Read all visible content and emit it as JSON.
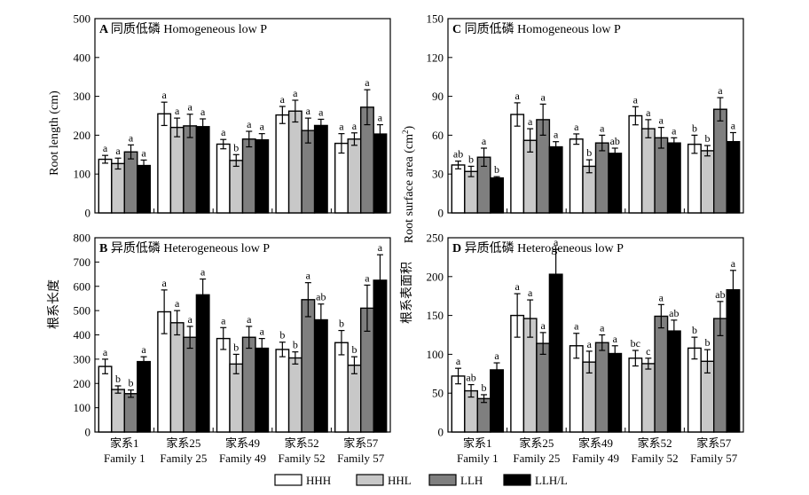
{
  "legend": [
    {
      "name": "HHH",
      "color": "#ffffff"
    },
    {
      "name": "HHL",
      "color": "#c8c8c8"
    },
    {
      "name": "LLH",
      "color": "#7f7f7f"
    },
    {
      "name": "LLH/L",
      "color": "#000000"
    }
  ],
  "y_label_left_cn": "根系长度",
  "y_label_left_en": "Root length (cm)",
  "y_label_right_cn": "根系表面积",
  "y_label_right_en": "Root surface area (cm",
  "y_label_right_sup": "2",
  "y_label_right_close": ")",
  "categories_cn": [
    "家系1",
    "家系25",
    "家系49",
    "家系52",
    "家系57"
  ],
  "categories_en": [
    "Family 1",
    "Family 25",
    "Family 49",
    "Family 52",
    "Family  57"
  ],
  "chart_data": [
    {
      "panel": "A",
      "type": "bar",
      "title_letter": "A",
      "title_cn": "同质低磷",
      "title_en": "Homogeneous low P",
      "ylim": [
        0,
        500
      ],
      "yticks": [
        0,
        100,
        200,
        300,
        400,
        500
      ],
      "categories": [
        "家系1",
        "家系25",
        "家系49",
        "家系52",
        "家系57"
      ],
      "series": [
        {
          "name": "HHH",
          "values": [
            138,
            255,
            177,
            252,
            179
          ],
          "errors": [
            10,
            30,
            12,
            22,
            25
          ],
          "letters": [
            "a",
            "a",
            "a",
            "a",
            "a"
          ]
        },
        {
          "name": "HHL",
          "values": [
            127,
            220,
            135,
            262,
            190
          ],
          "errors": [
            14,
            24,
            15,
            28,
            16
          ],
          "letters": [
            "a",
            "a",
            "b",
            "a",
            "a"
          ]
        },
        {
          "name": "LLH",
          "values": [
            157,
            224,
            190,
            212,
            272
          ],
          "errors": [
            18,
            30,
            20,
            32,
            45
          ],
          "letters": [
            "a",
            "a",
            "a",
            "a",
            "a"
          ]
        },
        {
          "name": "LLH/L",
          "values": [
            122,
            222,
            188,
            225,
            203
          ],
          "errors": [
            14,
            20,
            16,
            16,
            24
          ],
          "letters": [
            "a",
            "a",
            "a",
            "a",
            "a"
          ]
        }
      ]
    },
    {
      "panel": "B",
      "type": "bar",
      "title_letter": "B",
      "title_cn": "异质低磷",
      "title_en": "Heterogeneous low P",
      "ylim": [
        0,
        800
      ],
      "yticks": [
        0,
        100,
        200,
        300,
        400,
        500,
        600,
        700,
        800
      ],
      "categories": [
        "家系1",
        "家系25",
        "家系49",
        "家系52",
        "家系57"
      ],
      "series": [
        {
          "name": "HHH",
          "values": [
            270,
            495,
            385,
            340,
            368
          ],
          "errors": [
            30,
            90,
            45,
            30,
            50
          ],
          "letters": [
            "a",
            "a",
            "a",
            "b",
            "b"
          ]
        },
        {
          "name": "HHL",
          "values": [
            175,
            450,
            280,
            305,
            275
          ],
          "errors": [
            15,
            50,
            40,
            25,
            35
          ],
          "letters": [
            "b",
            "a",
            "b",
            "b",
            "b"
          ]
        },
        {
          "name": "LLH",
          "values": [
            158,
            390,
            390,
            545,
            510
          ],
          "errors": [
            15,
            45,
            45,
            70,
            95
          ],
          "letters": [
            "b",
            "a",
            "a",
            "a",
            "a"
          ]
        },
        {
          "name": "LLH/L",
          "values": [
            290,
            565,
            345,
            462,
            625
          ],
          "errors": [
            20,
            65,
            40,
            65,
            105
          ],
          "letters": [
            "a",
            "a",
            "a",
            "ab",
            "a"
          ]
        }
      ]
    },
    {
      "panel": "C",
      "type": "bar",
      "title_letter": "C",
      "title_cn": "同质低磷",
      "title_en": "Homogeneous low P",
      "ylim": [
        0,
        150
      ],
      "yticks": [
        0,
        30,
        60,
        90,
        120,
        150
      ],
      "categories": [
        "家系1",
        "家系25",
        "家系49",
        "家系52",
        "家系57"
      ],
      "series": [
        {
          "name": "HHH",
          "values": [
            37,
            76,
            57,
            75,
            53
          ],
          "errors": [
            3,
            9,
            4,
            7,
            7
          ],
          "letters": [
            "ab",
            "a",
            "a",
            "a",
            "b"
          ]
        },
        {
          "name": "HHL",
          "values": [
            32,
            56,
            36,
            65,
            48
          ],
          "errors": [
            4,
            9,
            5,
            7,
            4
          ],
          "letters": [
            "b",
            "a",
            "b",
            "a",
            "b"
          ]
        },
        {
          "name": "LLH",
          "values": [
            43,
            72,
            54,
            58,
            80
          ],
          "errors": [
            7,
            12,
            6,
            8,
            9
          ],
          "letters": [
            "a",
            "a",
            "a",
            "a",
            "a"
          ]
        },
        {
          "name": "LLH/L",
          "values": [
            27,
            51,
            46,
            54,
            55
          ],
          "errors": [
            1,
            4,
            4,
            4,
            7
          ],
          "letters": [
            "b",
            "a",
            "ab",
            "a",
            "a"
          ]
        }
      ]
    },
    {
      "panel": "D",
      "type": "bar",
      "title_letter": "D",
      "title_cn": "异质低磷",
      "title_en": "Heterogeneous low P",
      "ylim": [
        0,
        250
      ],
      "yticks": [
        0,
        50,
        100,
        150,
        200,
        250
      ],
      "categories": [
        "家系1",
        "家系25",
        "家系49",
        "家系52",
        "家系57"
      ],
      "series": [
        {
          "name": "HHH",
          "values": [
            72,
            150,
            111,
            95,
            108
          ],
          "errors": [
            10,
            28,
            16,
            10,
            14
          ],
          "letters": [
            "a",
            "a",
            "a",
            "bc",
            "b"
          ]
        },
        {
          "name": "HHL",
          "values": [
            53,
            146,
            90,
            88,
            91
          ],
          "errors": [
            8,
            24,
            14,
            7,
            15
          ],
          "letters": [
            "ab",
            "a",
            "a",
            "c",
            "b"
          ]
        },
        {
          "name": "LLH",
          "values": [
            43,
            114,
            115,
            149,
            146
          ],
          "errors": [
            5,
            14,
            10,
            15,
            22
          ],
          "letters": [
            "b",
            "a",
            "a",
            "a",
            "ab"
          ]
        },
        {
          "name": "LLH/L",
          "values": [
            80,
            203,
            101,
            130,
            183
          ],
          "errors": [
            9,
            32,
            10,
            14,
            25
          ],
          "letters": [
            "a",
            "a",
            "a",
            "ab",
            "a"
          ]
        }
      ]
    }
  ]
}
